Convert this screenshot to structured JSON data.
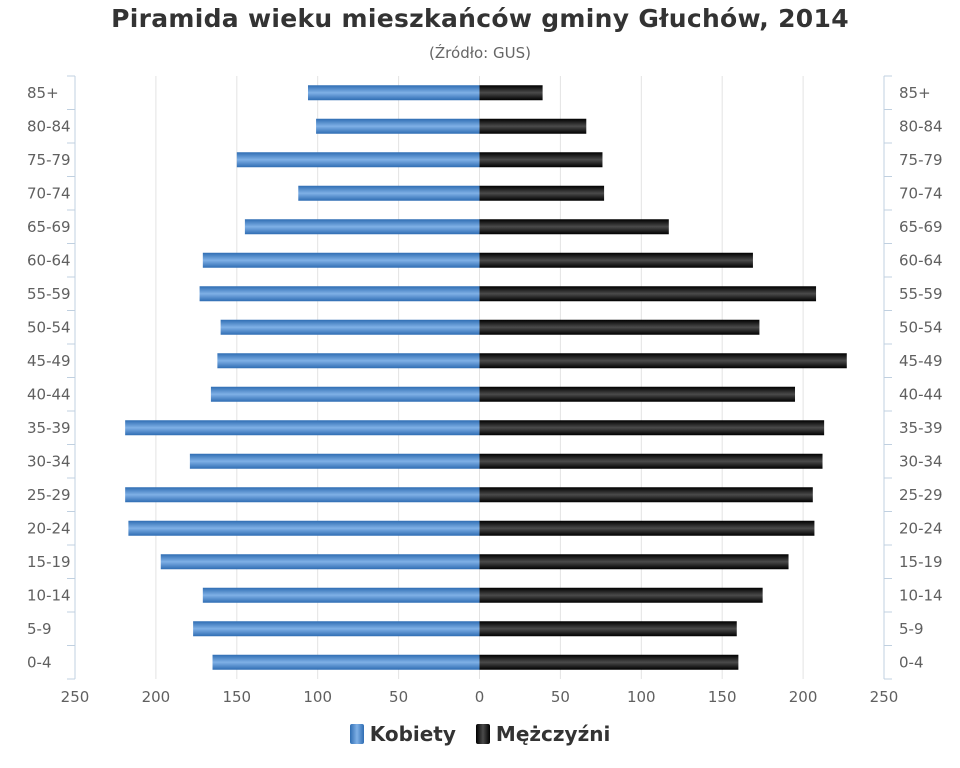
{
  "title": "Piramida wieku mieszkańców gminy Głuchów, 2014",
  "subtitle": "(Źródło: GUS)",
  "chart_data": {
    "type": "bar",
    "orientation": "horizontal-population-pyramid",
    "categories": [
      "85+",
      "80-84",
      "75-79",
      "70-74",
      "65-69",
      "60-64",
      "55-59",
      "50-54",
      "45-49",
      "40-44",
      "35-39",
      "30-34",
      "25-29",
      "20-24",
      "15-19",
      "10-14",
      "5-9",
      "0-4"
    ],
    "series": [
      {
        "name": "Kobiety",
        "color": "#3d7cc0",
        "values": [
          106,
          101,
          150,
          112,
          145,
          171,
          173,
          160,
          162,
          166,
          219,
          179,
          219,
          217,
          197,
          171,
          177,
          165
        ]
      },
      {
        "name": "Mężczyźni",
        "color": "#111111",
        "values": [
          39,
          66,
          76,
          77,
          117,
          169,
          208,
          173,
          227,
          195,
          213,
          212,
          206,
          207,
          191,
          175,
          159,
          160
        ]
      }
    ],
    "xticks": [
      "250",
      "200",
      "150",
      "100",
      "50",
      "0",
      "50",
      "100",
      "150",
      "200",
      "250"
    ],
    "xlim": [
      -250,
      250
    ],
    "grid": true,
    "legend_position": "bottom-center"
  }
}
